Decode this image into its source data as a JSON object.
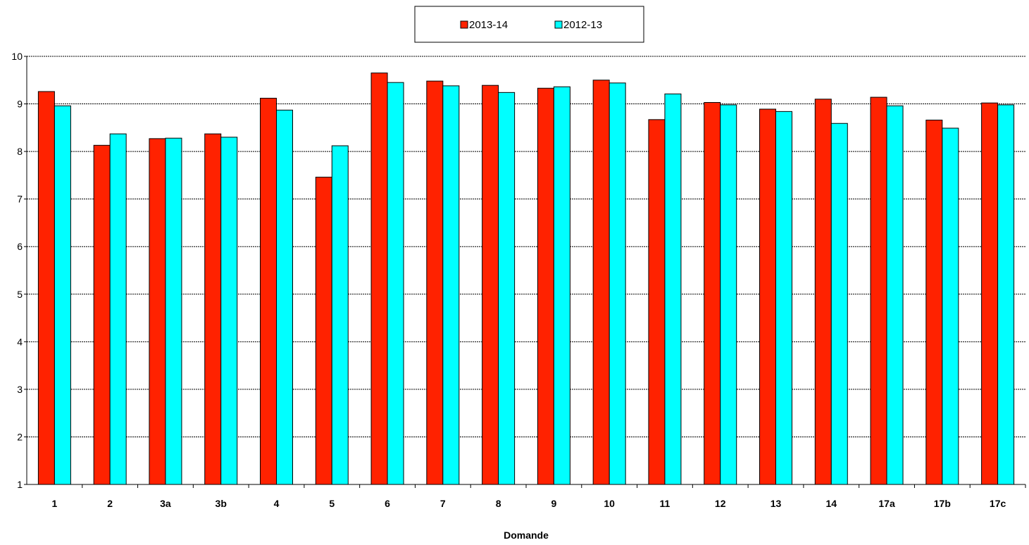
{
  "chart_data": {
    "type": "bar",
    "title": "",
    "xlabel": "Domande",
    "ylabel": "",
    "ylim": [
      1,
      10
    ],
    "yticks": [
      1,
      2,
      3,
      4,
      5,
      6,
      7,
      8,
      9,
      10
    ],
    "grid": true,
    "legend_position": "top-center",
    "categories": [
      "1",
      "2",
      "3a",
      "3b",
      "4",
      "5",
      "6",
      "7",
      "8",
      "9",
      "10",
      "11",
      "12",
      "13",
      "14",
      "17a",
      "17b",
      "17c"
    ],
    "series": [
      {
        "name": "2013-14",
        "color": "#ff2200",
        "values": [
          9.26,
          8.13,
          8.27,
          8.37,
          9.12,
          7.46,
          9.65,
          9.48,
          9.39,
          9.33,
          9.5,
          8.67,
          9.03,
          8.89,
          9.1,
          9.14,
          8.66,
          9.02
        ]
      },
      {
        "name": "2012-13",
        "color": "#00ffff",
        "values": [
          8.96,
          8.37,
          8.28,
          8.3,
          8.87,
          8.12,
          9.45,
          9.38,
          9.24,
          9.36,
          9.44,
          9.21,
          8.98,
          8.84,
          8.59,
          8.96,
          8.49,
          8.98
        ]
      }
    ]
  }
}
